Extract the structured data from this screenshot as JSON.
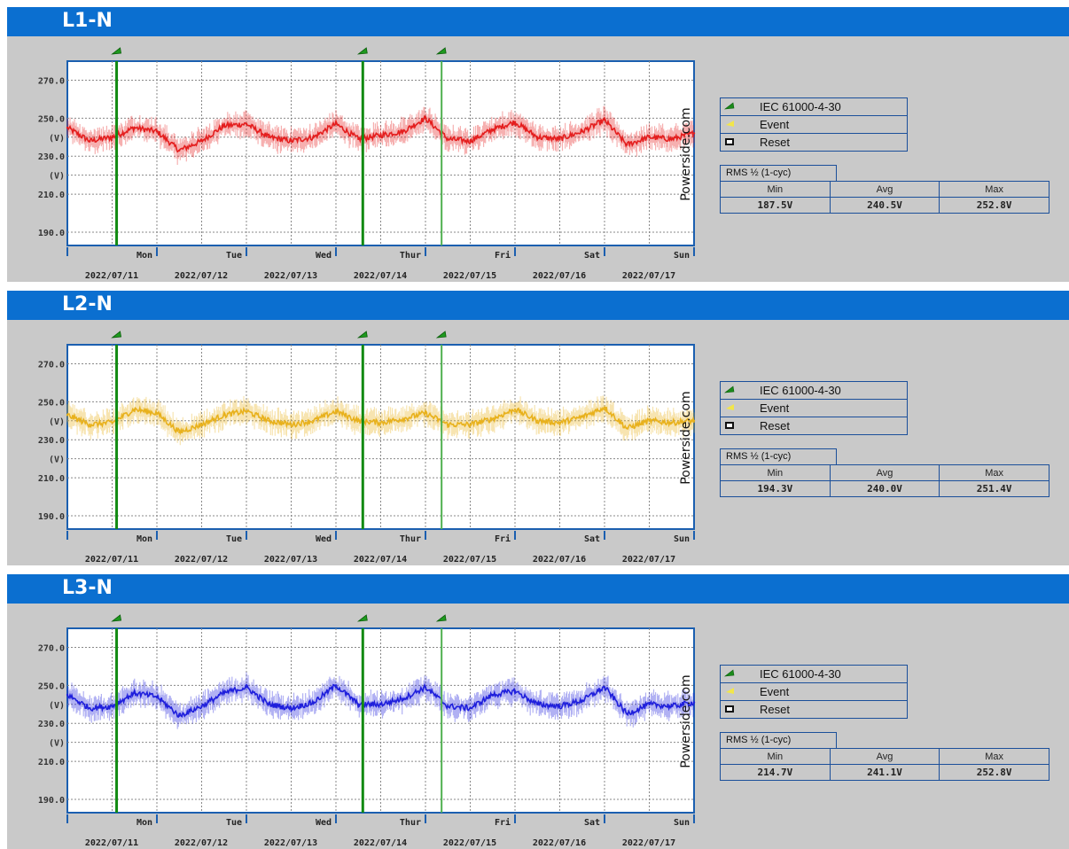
{
  "weekdays": [
    "Mon",
    "Tue",
    "Wed",
    "Thur",
    "Fri",
    "Sat",
    "Sun"
  ],
  "dates": [
    "2022/07/11",
    "2022/07/12",
    "2022/07/13",
    "2022/07/14",
    "2022/07/15",
    "2022/07/16",
    "2022/07/17"
  ],
  "y_ticks": [
    "270.0",
    "250.0",
    "(V)",
    "230.0",
    "(V)",
    "210.0",
    "190.0"
  ],
  "watermark": "Powerside.com",
  "legend": [
    {
      "icon": "iec-flag-icon",
      "label": "IEC 61000-4-30",
      "color": "#1a8a1a"
    },
    {
      "icon": "event-icon",
      "label": "Event",
      "color": "#f2e64a"
    },
    {
      "icon": "reset-icon",
      "label": "Reset",
      "color": "#111111"
    }
  ],
  "stats_title": "RMS ½ (1-cyc)",
  "stats_headers": [
    "Min",
    "Avg",
    "Max"
  ],
  "colors": {
    "header": "#0b6fd0",
    "panel": "#c9c9c9",
    "marker": "#1a8a1a"
  },
  "chart_data": [
    {
      "type": "line",
      "title": "L1-N",
      "ylabel": "(V)",
      "ylim": [
        183,
        280
      ],
      "x_range_days": [
        0,
        7
      ],
      "color": "#e41e1e",
      "markers_day": [
        0.55,
        3.3,
        4.18
      ],
      "stats": {
        "min": "187.5V",
        "avg": "240.5V",
        "max": "252.8V"
      },
      "x": [
        0,
        0.25,
        0.5,
        0.75,
        1,
        1.25,
        1.5,
        1.75,
        2,
        2.25,
        2.5,
        2.75,
        3,
        3.25,
        3.5,
        3.75,
        4,
        4.25,
        4.5,
        4.75,
        5,
        5.25,
        5.5,
        5.75,
        6,
        6.25,
        6.5,
        6.75,
        7
      ],
      "values": [
        245,
        238,
        240,
        245,
        243,
        233,
        238,
        246,
        247,
        240,
        238,
        240,
        247,
        239,
        241,
        243,
        250,
        239,
        238,
        244,
        248,
        240,
        239,
        243,
        249,
        236,
        240,
        239,
        242
      ]
    },
    {
      "type": "line",
      "title": "L2-N",
      "ylabel": "(V)",
      "ylim": [
        183,
        280
      ],
      "x_range_days": [
        0,
        7
      ],
      "color": "#e8b11c",
      "markers_day": [
        0.55,
        3.3,
        4.18
      ],
      "stats": {
        "min": "194.3V",
        "avg": "240.0V",
        "max": "251.4V"
      },
      "x": [
        0,
        0.25,
        0.5,
        0.75,
        1,
        1.25,
        1.5,
        1.75,
        2,
        2.25,
        2.5,
        2.75,
        3,
        3.25,
        3.5,
        3.75,
        4,
        4.25,
        4.5,
        4.75,
        5,
        5.25,
        5.5,
        5.75,
        6,
        6.25,
        6.5,
        6.75,
        7
      ],
      "values": [
        243,
        238,
        239,
        246,
        244,
        234,
        238,
        243,
        245,
        240,
        238,
        240,
        245,
        240,
        239,
        241,
        244,
        238,
        238,
        241,
        246,
        240,
        239,
        242,
        247,
        236,
        240,
        239,
        240
      ]
    },
    {
      "type": "line",
      "title": "L3-N",
      "ylabel": "(V)",
      "ylim": [
        183,
        280
      ],
      "x_range_days": [
        0,
        7
      ],
      "color": "#1f1fdc",
      "markers_day": [
        0.55,
        3.3,
        4.18
      ],
      "stats": {
        "min": "214.7V",
        "avg": "241.1V",
        "max": "252.8V"
      },
      "x": [
        0,
        0.25,
        0.5,
        0.75,
        1,
        1.25,
        1.5,
        1.75,
        2,
        2.25,
        2.5,
        2.75,
        3,
        3.25,
        3.5,
        3.75,
        4,
        4.25,
        4.5,
        4.75,
        5,
        5.25,
        5.5,
        5.75,
        6,
        6.25,
        6.5,
        6.75,
        7
      ],
      "values": [
        245,
        238,
        239,
        246,
        244,
        234,
        239,
        246,
        249,
        240,
        238,
        241,
        250,
        240,
        240,
        243,
        249,
        239,
        238,
        245,
        247,
        240,
        239,
        242,
        249,
        235,
        240,
        239,
        241
      ]
    }
  ]
}
